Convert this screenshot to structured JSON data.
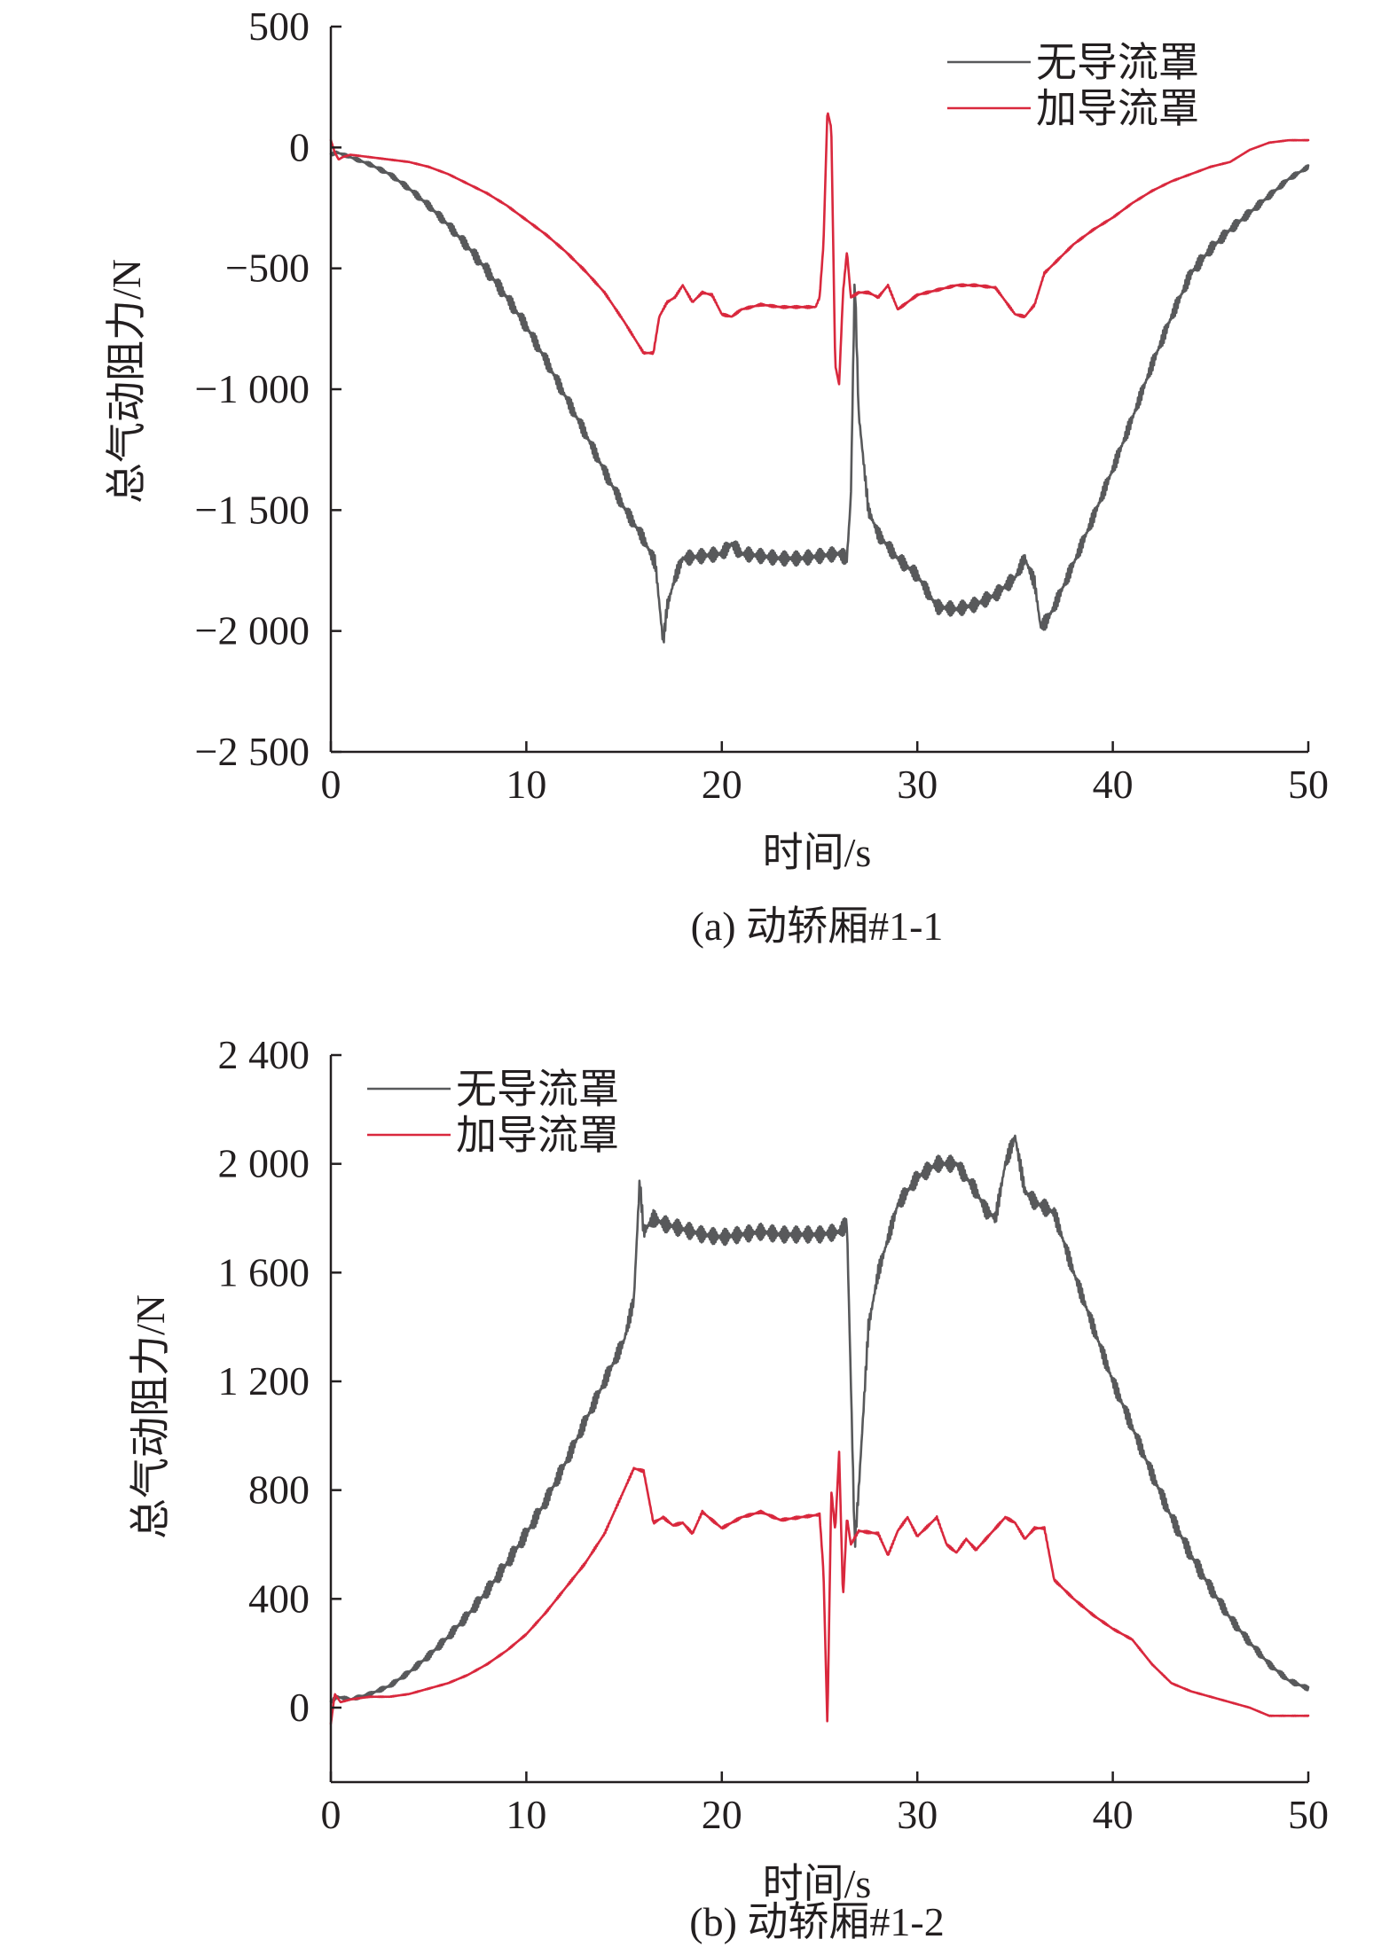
{
  "chart_data": [
    {
      "type": "line",
      "caption": "(a) 动轿厢#1-1",
      "xlabel": "时间/s",
      "ylabel": "总气动阻力/N",
      "xlim": [
        0,
        50
      ],
      "ylim": [
        -2500,
        500
      ],
      "xticks": [
        0,
        10,
        20,
        30,
        40,
        50
      ],
      "yticks": [
        500,
        0,
        -500,
        -1000,
        -1500,
        -2000,
        -2500
      ],
      "ytick_labels": [
        "500",
        "0",
        "−500",
        "−1 000",
        "−1 500",
        "−2 000",
        "−2 500"
      ],
      "xtick_labels": [
        "0",
        "10",
        "20",
        "30",
        "40",
        "50"
      ],
      "legend_position": "top-right",
      "series": [
        {
          "name": "无导流罩",
          "color": "#58595b",
          "noise_amplitude": 30,
          "x": [
            0,
            0.3,
            1,
            2,
            3,
            4,
            5,
            6,
            7,
            8,
            9,
            10,
            11,
            12,
            13,
            14,
            15,
            16,
            16.6,
            17.0,
            17.2,
            17.6,
            18,
            19,
            20,
            20.5,
            21,
            22,
            23,
            24,
            25,
            26,
            26.4,
            26.6,
            26.8,
            27.0,
            27.5,
            28,
            29,
            30,
            31,
            32,
            33,
            34,
            35,
            35.5,
            36,
            36.3,
            36.6,
            37,
            38,
            39,
            40,
            41,
            42,
            43,
            44,
            45,
            46,
            47,
            48,
            49,
            50
          ],
          "y": [
            -30,
            -20,
            -40,
            -70,
            -110,
            -170,
            -240,
            -320,
            -410,
            -510,
            -620,
            -740,
            -880,
            -1030,
            -1180,
            -1340,
            -1490,
            -1620,
            -1720,
            -2050,
            -1900,
            -1780,
            -1700,
            -1690,
            -1680,
            -1640,
            -1680,
            -1690,
            -1700,
            -1700,
            -1690,
            -1680,
            -1700,
            -1450,
            -530,
            -1100,
            -1500,
            -1600,
            -1700,
            -1770,
            -1900,
            -1910,
            -1890,
            -1850,
            -1780,
            -1700,
            -1800,
            -1980,
            -1960,
            -1900,
            -1720,
            -1530,
            -1330,
            -1120,
            -900,
            -700,
            -520,
            -420,
            -340,
            -270,
            -200,
            -130,
            -80
          ]
        },
        {
          "name": "加导流罩",
          "color": "#d9283d",
          "noise_amplitude": 4,
          "x": [
            0,
            0.2,
            0.4,
            0.6,
            1,
            2,
            3,
            4,
            5,
            6,
            7,
            8,
            9,
            10,
            11,
            12,
            13,
            14,
            15,
            16,
            16.5,
            16.8,
            17.2,
            17.6,
            18,
            18.5,
            19,
            19.5,
            20,
            20.5,
            21,
            22,
            23,
            24,
            24.8,
            25,
            25.2,
            25.4,
            25.6,
            25.8,
            26.0,
            26.2,
            26.4,
            26.6,
            27,
            27.5,
            28,
            28.5,
            29,
            29.5,
            30,
            31,
            32,
            33,
            34,
            35,
            35.5,
            36,
            36.5,
            37,
            38,
            39,
            40,
            41,
            42,
            43,
            44,
            45,
            46,
            47,
            48,
            49,
            50
          ],
          "y": [
            30,
            -20,
            -50,
            -40,
            -30,
            -40,
            -50,
            -60,
            -80,
            -110,
            -150,
            -190,
            -240,
            -300,
            -360,
            -430,
            -510,
            -600,
            -720,
            -850,
            -850,
            -700,
            -640,
            -620,
            -570,
            -640,
            -600,
            -610,
            -690,
            -700,
            -670,
            -650,
            -660,
            -660,
            -660,
            -620,
            -400,
            150,
            80,
            -900,
            -980,
            -600,
            -430,
            -620,
            -600,
            -600,
            -620,
            -570,
            -670,
            -640,
            -610,
            -590,
            -570,
            -570,
            -580,
            -690,
            -700,
            -650,
            -520,
            -480,
            -400,
            -340,
            -290,
            -230,
            -180,
            -140,
            -110,
            -80,
            -60,
            -10,
            20,
            30,
            30
          ]
        }
      ]
    },
    {
      "type": "line",
      "caption": "(b) 动轿厢#1-2",
      "xlabel": "时间/s",
      "ylabel": "总气动阻力/N",
      "xlim": [
        0,
        50
      ],
      "ylim": [
        -200,
        2400
      ],
      "xticks": [
        0,
        10,
        20,
        30,
        40,
        50
      ],
      "yticks": [
        0,
        400,
        800,
        1200,
        1600,
        2000,
        2400
      ],
      "ytick_labels": [
        "0",
        "400",
        "800",
        "1 200",
        "1 600",
        "2 000",
        "2 400"
      ],
      "xtick_labels": [
        "0",
        "10",
        "20",
        "30",
        "40",
        "50"
      ],
      "legend_position": "top-left",
      "series": [
        {
          "name": "无导流罩",
          "color": "#58595b",
          "noise_amplitude": 30,
          "x": [
            0,
            0.3,
            1,
            2,
            3,
            4,
            5,
            6,
            7,
            8,
            9,
            10,
            11,
            12,
            13,
            14,
            15,
            15.5,
            15.8,
            16,
            16.5,
            17,
            18,
            19,
            20,
            21,
            22,
            23,
            24,
            25,
            26,
            26.4,
            26.6,
            26.8,
            27,
            27.5,
            28,
            29,
            30,
            31,
            32,
            33,
            33.5,
            34,
            34.5,
            35,
            35.5,
            36,
            37,
            38,
            39,
            40,
            41,
            42,
            43,
            44,
            45,
            46,
            47,
            48,
            49,
            50
          ],
          "y": [
            20,
            40,
            30,
            50,
            80,
            130,
            190,
            260,
            340,
            430,
            530,
            640,
            760,
            900,
            1050,
            1200,
            1350,
            1500,
            1940,
            1750,
            1800,
            1780,
            1760,
            1740,
            1730,
            1740,
            1750,
            1740,
            1740,
            1740,
            1750,
            1780,
            1200,
            600,
            800,
            1400,
            1600,
            1850,
            1950,
            2000,
            2000,
            1900,
            1830,
            1800,
            2000,
            2100,
            1900,
            1860,
            1820,
            1600,
            1400,
            1200,
            1030,
            860,
            700,
            560,
            440,
            330,
            240,
            160,
            100,
            70
          ]
        },
        {
          "name": "加导流罩",
          "color": "#d9283d",
          "noise_amplitude": 4,
          "x": [
            0,
            0.2,
            0.5,
            1,
            2,
            3,
            4,
            5,
            6,
            7,
            8,
            9,
            10,
            11,
            12,
            13,
            14,
            15,
            15.5,
            16,
            16.5,
            17,
            17.5,
            18,
            18.5,
            19,
            19.5,
            20,
            21,
            22,
            23,
            24,
            25,
            25.2,
            25.4,
            25.6,
            25.8,
            26.0,
            26.2,
            26.4,
            26.6,
            27,
            28,
            28.5,
            29,
            29.5,
            30,
            31,
            31.5,
            32,
            32.5,
            33,
            33.5,
            34,
            34.5,
            35,
            35.5,
            36,
            36.5,
            37,
            38,
            39,
            40,
            41,
            42,
            43,
            44,
            45,
            46,
            47,
            48,
            49,
            50
          ],
          "y": [
            -60,
            50,
            20,
            30,
            40,
            40,
            50,
            70,
            90,
            120,
            160,
            210,
            270,
            350,
            440,
            530,
            640,
            800,
            880,
            870,
            680,
            700,
            670,
            680,
            640,
            720,
            690,
            660,
            700,
            720,
            690,
            700,
            710,
            500,
            -70,
            800,
            650,
            940,
            400,
            700,
            600,
            650,
            640,
            560,
            650,
            700,
            630,
            700,
            600,
            570,
            620,
            580,
            620,
            660,
            700,
            680,
            620,
            660,
            660,
            470,
            400,
            340,
            290,
            250,
            160,
            90,
            60,
            40,
            20,
            0,
            -30,
            -30,
            -30
          ]
        }
      ]
    }
  ]
}
